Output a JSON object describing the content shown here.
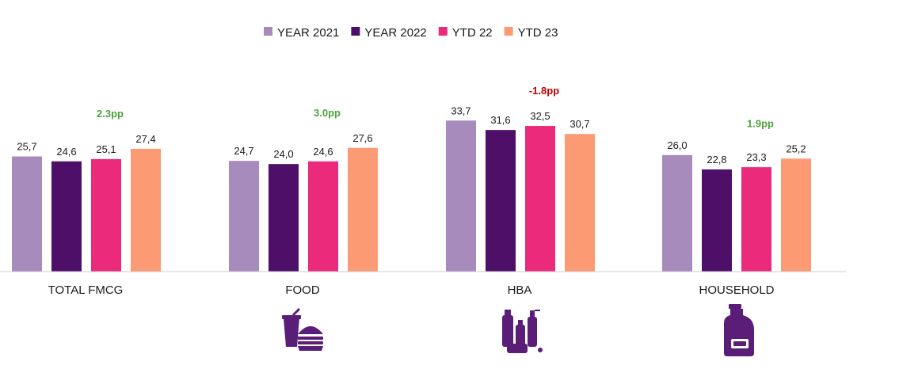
{
  "chart_data": {
    "type": "bar",
    "categories": [
      "TOTAL FMCG",
      "FOOD",
      "HBA",
      "HOUSEHOLD"
    ],
    "series": [
      {
        "name": "YEAR 2021",
        "values": [
          25.7,
          24.7,
          33.7,
          26.0
        ],
        "color": "#a88bbd"
      },
      {
        "name": "YEAR 2022",
        "values": [
          24.6,
          24.0,
          31.6,
          22.8
        ],
        "color": "#4e0f68"
      },
      {
        "name": "YTD 22",
        "values": [
          25.1,
          24.6,
          32.5,
          23.3
        ],
        "color": "#ec2a7c"
      },
      {
        "name": "YTD 23",
        "values": [
          27.4,
          27.6,
          30.7,
          25.2
        ],
        "color": "#fb9a73"
      }
    ],
    "value_labels": [
      [
        "25,7",
        "24,7",
        "33,7",
        "26,0"
      ],
      [
        "24,6",
        "24,0",
        "31,6",
        "22,8"
      ],
      [
        "25,1",
        "24,6",
        "32,5",
        "23,3"
      ],
      [
        "27,4",
        "27,6",
        "30,7",
        "25,2"
      ]
    ],
    "annotations": [
      {
        "category": "TOTAL FMCG",
        "text": "2.3pp",
        "color": "#4aa33c"
      },
      {
        "category": "FOOD",
        "text": "3.0pp",
        "color": "#4aa33c"
      },
      {
        "category": "HBA",
        "text": "-1.8pp",
        "color": "#c00000"
      },
      {
        "category": "HOUSEHOLD",
        "text": "1.9pp",
        "color": "#4aa33c"
      }
    ],
    "category_icons": [
      "",
      "food-icon",
      "hba-icon",
      "household-icon"
    ],
    "icon_color": "#5b1e78",
    "legend_position": "top-center",
    "ylim": [
      0,
      34
    ],
    "grid": false,
    "xlabel": "",
    "ylabel": ""
  }
}
